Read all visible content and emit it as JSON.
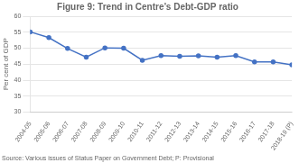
{
  "chart_data": {
    "type": "line",
    "title": "Figure 9: Trend in Centre’s Debt-GDP ratio",
    "ylabel": "Per cent of GDP",
    "source": "Source: Various issues of Status Paper on Government Debt; P: Provisional",
    "categories": [
      "2004-05",
      "2005-06",
      "2006-07",
      "2007-08",
      "2008-09",
      "2009-10",
      "2010-11",
      "2011-12",
      "2012-13",
      "2013-14",
      "2014-15",
      "2015-16",
      "2016-17",
      "2017-18",
      "2018-19 (P)"
    ],
    "values": [
      55.1,
      53.3,
      49.9,
      47.2,
      50.1,
      50.0,
      46.2,
      47.7,
      47.5,
      47.6,
      47.2,
      47.7,
      45.7,
      45.7,
      44.8
    ],
    "color": "#4472C4",
    "marker": "circle",
    "ylim": [
      30,
      60
    ],
    "yticks": [
      30,
      35,
      40,
      45,
      50,
      55,
      60
    ],
    "grid": true
  }
}
